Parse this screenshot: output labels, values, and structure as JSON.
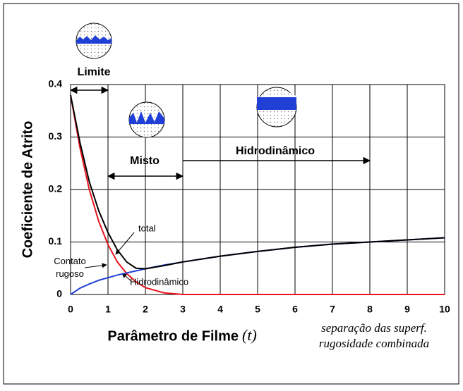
{
  "chart_data": {
    "type": "line",
    "y_label": "Coeficiente de Atrito",
    "x_label": "Parâmetro de Filme",
    "x_label_symbol": "(t)",
    "x_label_note": [
      "separação das superf.",
      "rugosidade combinada"
    ],
    "x": [
      0,
      0.25,
      0.5,
      0.75,
      1,
      1.25,
      1.5,
      1.75,
      2,
      2.5,
      3,
      4,
      5,
      6,
      7,
      8,
      9,
      10
    ],
    "series": [
      {
        "name": "Contato rugoso",
        "color": "#e8141c",
        "values": [
          0.38,
          0.28,
          0.2,
          0.14,
          0.095,
          0.062,
          0.04,
          0.024,
          0.013,
          0.003,
          0,
          0,
          0,
          0,
          0,
          0,
          0,
          0
        ]
      },
      {
        "name": "Hidrodinâmico",
        "color": "#1f3fd6",
        "values": [
          0,
          0.012,
          0.02,
          0.027,
          0.032,
          0.037,
          0.041,
          0.045,
          0.049,
          0.056,
          0.062,
          0.073,
          0.082,
          0.09,
          0.096,
          0.1,
          0.104,
          0.108
        ]
      },
      {
        "name": "total",
        "color": "#000000",
        "values": [
          0.38,
          0.29,
          0.215,
          0.16,
          0.118,
          0.085,
          0.062,
          0.05,
          0.049,
          0.055,
          0.062,
          0.073,
          0.082,
          0.09,
          0.096,
          0.1,
          0.104,
          0.108
        ]
      }
    ],
    "regimes": [
      {
        "label": "Limite",
        "range": [
          0,
          1
        ]
      },
      {
        "label": "Misto",
        "range": [
          1,
          3
        ]
      },
      {
        "label": "Hidrodinâmico",
        "range": [
          3,
          8
        ]
      }
    ],
    "xlim": [
      0,
      10
    ],
    "xticks": [
      0,
      1,
      2,
      3,
      4,
      5,
      6,
      7,
      8,
      9,
      10
    ],
    "ylim": [
      0,
      0.4
    ],
    "yticks": [
      0,
      0.1,
      0.2,
      0.3,
      0.4
    ],
    "grid": true
  }
}
